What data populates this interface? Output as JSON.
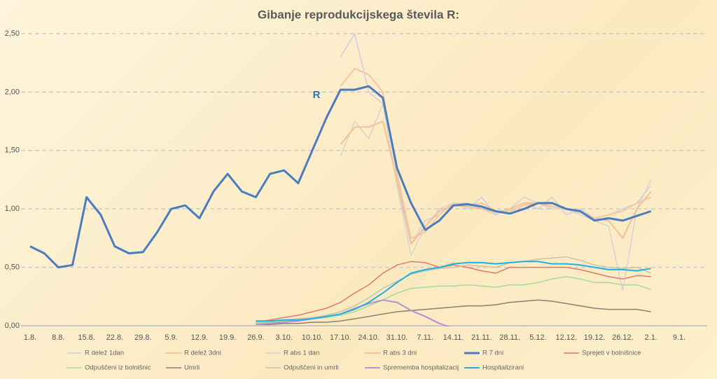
{
  "chart_data": {
    "type": "line",
    "title": "Gibanje reprodukcijskega števila R:",
    "annotation": "R",
    "categories": [
      "1.8.",
      null,
      "8.8.",
      null,
      "15.8.",
      null,
      "22.8.",
      null,
      "29.8.",
      null,
      "5.9.",
      null,
      "12.9.",
      null,
      "19.9.",
      null,
      "26.9.",
      null,
      "3.10.",
      null,
      "10.10.",
      null,
      "17.10.",
      null,
      "24.10.",
      null,
      "31.10.",
      null,
      "7.11.",
      null,
      "14.11.",
      null,
      "21.11.",
      null,
      "28.11.",
      null,
      "5.12.",
      null,
      "12.12.",
      null,
      "19.12.",
      null,
      "26.12.",
      null,
      "2.1.",
      null,
      "9.1."
    ],
    "ylim": [
      0,
      2.5
    ],
    "yticks": [
      {
        "value": 0,
        "label": "0,00"
      },
      {
        "value": 0.5,
        "label": "0,50"
      },
      {
        "value": 1,
        "label": "1,00"
      },
      {
        "value": 1.5,
        "label": "1,50"
      },
      {
        "value": 2,
        "label": "2,00"
      },
      {
        "value": 2.5,
        "label": "2,50"
      }
    ],
    "grid": true,
    "legend": "bottom",
    "series": [
      {
        "name": "R delež 1dan",
        "color": "#cfcfdc",
        "width": 1.5,
        "values": [
          null,
          null,
          null,
          null,
          null,
          null,
          null,
          null,
          null,
          null,
          null,
          null,
          null,
          null,
          null,
          null,
          null,
          null,
          null,
          null,
          null,
          null,
          2.3,
          2.5,
          2.0,
          1.9,
          1.2,
          0.7,
          0.9,
          0.95,
          1.05,
          1.0,
          1.1,
          0.95,
          1.0,
          1.05,
          1.0,
          1.1,
          0.95,
          1.0,
          0.92,
          0.95,
          1.0,
          1.05,
          1.2,
          null,
          null
        ]
      },
      {
        "name": "R delež 3dni",
        "color": "#f6c6a0",
        "width": 2,
        "values": [
          null,
          null,
          null,
          null,
          null,
          null,
          null,
          null,
          null,
          null,
          null,
          null,
          null,
          null,
          null,
          null,
          null,
          null,
          null,
          null,
          null,
          null,
          2.05,
          2.2,
          2.15,
          2.0,
          1.3,
          0.75,
          0.8,
          0.95,
          1.05,
          1.03,
          1.05,
          0.98,
          0.98,
          1.03,
          1.05,
          1.05,
          1.0,
          0.98,
          0.92,
          0.95,
          0.98,
          1.05,
          1.1,
          null,
          null
        ]
      },
      {
        "name": "R abs 1 dan",
        "color": "#d4d4d4",
        "width": 1.5,
        "values": [
          null,
          null,
          null,
          null,
          null,
          null,
          null,
          null,
          null,
          null,
          null,
          null,
          null,
          null,
          null,
          null,
          null,
          null,
          null,
          null,
          null,
          null,
          1.45,
          1.75,
          1.6,
          1.9,
          1.2,
          0.6,
          0.85,
          1.0,
          1.05,
          1.05,
          1.0,
          0.95,
          1.0,
          1.1,
          1.05,
          1.0,
          1.0,
          0.95,
          0.9,
          0.85,
          0.3,
          1.0,
          1.25,
          null,
          null
        ]
      },
      {
        "name": "R abs 3 dni",
        "color": "#f4c09a",
        "width": 2,
        "values": [
          null,
          null,
          null,
          null,
          null,
          null,
          null,
          null,
          null,
          null,
          null,
          null,
          null,
          null,
          null,
          null,
          null,
          null,
          null,
          null,
          null,
          null,
          1.55,
          1.7,
          1.7,
          1.75,
          1.25,
          0.7,
          0.85,
          0.98,
          1.03,
          1.02,
          1.0,
          0.97,
          1.0,
          1.05,
          1.05,
          1.02,
          1.0,
          0.97,
          0.92,
          0.9,
          0.75,
          1.0,
          1.15,
          null,
          null
        ]
      },
      {
        "name": "R 7 dni",
        "color": "#4a7cc0",
        "width": 3,
        "values": [
          0.68,
          0.62,
          0.5,
          0.52,
          1.1,
          0.95,
          0.68,
          0.62,
          0.63,
          0.8,
          1.0,
          1.03,
          0.92,
          1.15,
          1.3,
          1.15,
          1.1,
          1.3,
          1.33,
          1.22,
          1.5,
          1.78,
          2.02,
          2.02,
          2.05,
          1.95,
          1.35,
          1.05,
          0.82,
          0.9,
          1.03,
          1.04,
          1.02,
          0.98,
          0.96,
          1.0,
          1.05,
          1.05,
          1.0,
          0.98,
          0.9,
          0.92,
          0.9,
          0.94,
          0.98,
          null,
          null
        ]
      },
      {
        "name": "Sprejeti v bolnišnice",
        "color": "#e07a66",
        "width": 1.5,
        "values": [
          null,
          null,
          null,
          null,
          null,
          null,
          null,
          null,
          null,
          null,
          null,
          null,
          null,
          null,
          null,
          null,
          0.03,
          0.05,
          0.07,
          0.09,
          0.12,
          0.15,
          0.2,
          0.28,
          0.35,
          0.45,
          0.52,
          0.55,
          0.54,
          0.5,
          0.52,
          0.5,
          0.47,
          0.45,
          0.5,
          0.5,
          0.5,
          0.5,
          0.5,
          0.48,
          0.45,
          0.42,
          0.4,
          0.43,
          0.42,
          null,
          null
        ]
      },
      {
        "name": "Odpuščeni iz bolnišnic",
        "color": "#a8d8a0",
        "width": 1.5,
        "values": [
          null,
          null,
          null,
          null,
          null,
          null,
          null,
          null,
          null,
          null,
          null,
          null,
          null,
          null,
          null,
          null,
          0.02,
          0.03,
          0.04,
          0.05,
          0.06,
          0.07,
          0.09,
          0.12,
          0.17,
          0.22,
          0.28,
          0.32,
          0.33,
          0.34,
          0.34,
          0.35,
          0.34,
          0.33,
          0.35,
          0.35,
          0.37,
          0.4,
          0.42,
          0.4,
          0.37,
          0.37,
          0.35,
          0.35,
          0.31,
          null,
          null
        ]
      },
      {
        "name": "Umrli",
        "color": "#8c8070",
        "width": 1.5,
        "values": [
          null,
          null,
          null,
          null,
          null,
          null,
          null,
          null,
          null,
          null,
          null,
          null,
          null,
          null,
          null,
          null,
          0.01,
          0.01,
          0.02,
          0.02,
          0.03,
          0.03,
          0.04,
          0.06,
          0.08,
          0.1,
          0.12,
          0.13,
          0.14,
          0.15,
          0.16,
          0.17,
          0.17,
          0.18,
          0.2,
          0.21,
          0.22,
          0.21,
          0.19,
          0.17,
          0.15,
          0.14,
          0.14,
          0.14,
          0.12,
          null,
          null
        ]
      },
      {
        "name": "Odpuščeni in umrli",
        "color": "#c8c4a4",
        "width": 1.5,
        "values": [
          null,
          null,
          null,
          null,
          null,
          null,
          null,
          null,
          null,
          null,
          null,
          null,
          null,
          null,
          null,
          null,
          0.03,
          0.04,
          0.05,
          0.06,
          0.07,
          0.09,
          0.12,
          0.17,
          0.24,
          0.32,
          0.38,
          0.44,
          0.47,
          0.49,
          0.5,
          0.52,
          0.51,
          0.5,
          0.54,
          0.55,
          0.57,
          0.58,
          0.59,
          0.56,
          0.52,
          0.5,
          0.49,
          0.5,
          0.45,
          null,
          null
        ]
      },
      {
        "name": "Sprememba hospitalizacij",
        "color": "#b592cc",
        "width": 2,
        "values": [
          null,
          null,
          null,
          null,
          null,
          null,
          null,
          null,
          null,
          null,
          null,
          null,
          null,
          null,
          null,
          null,
          0.01,
          0.02,
          0.03,
          0.04,
          0.06,
          0.08,
          0.1,
          0.15,
          0.19,
          0.22,
          0.2,
          0.13,
          0.08,
          0.02,
          -0.02,
          -0.02,
          -0.03,
          -0.02,
          -0.02,
          -0.01,
          -0.02,
          -0.03,
          -0.05,
          -0.04,
          -0.05,
          -0.06,
          -0.03,
          -0.02,
          -0.01,
          null,
          null
        ]
      },
      {
        "name": "Hospitalizirani",
        "color": "#1fb0e8",
        "width": 2,
        "values": [
          null,
          null,
          null,
          null,
          null,
          null,
          null,
          null,
          null,
          null,
          null,
          null,
          null,
          null,
          null,
          null,
          0.04,
          0.04,
          0.05,
          0.05,
          0.06,
          0.08,
          0.1,
          0.14,
          0.2,
          0.28,
          0.37,
          0.45,
          0.48,
          0.5,
          0.53,
          0.54,
          0.54,
          0.53,
          0.54,
          0.55,
          0.55,
          0.53,
          0.53,
          0.52,
          0.5,
          0.48,
          0.48,
          0.47,
          0.49,
          null,
          null
        ]
      }
    ]
  }
}
